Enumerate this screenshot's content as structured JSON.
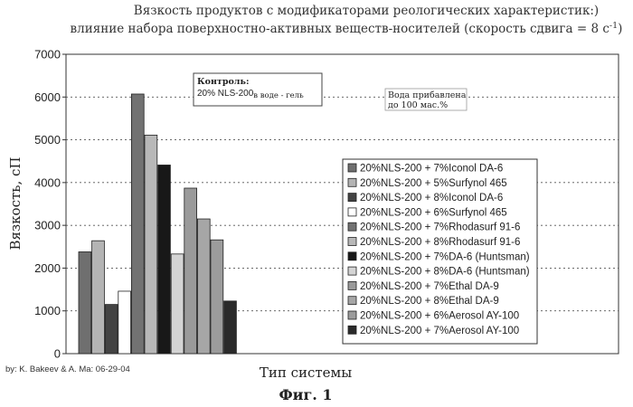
{
  "title_line1": "Вязкость продуктов с модификаторами реологических характеристик:)",
  "title_line2": "влияние набора поверхностно-активных веществ-носителей (скорость сдвига = 8 с",
  "title_sup": "-1",
  "title_close": ")",
  "control_label": "Контроль:",
  "control_text_main": "20% NLS-200",
  "control_text_sub": "в воде - гель",
  "water_line1": "Вода прибавлена",
  "water_line2": "до 100 мас.%",
  "credit": "by: K. Bakeev & A. Ma: 06-29-04",
  "figure_caption": "Фиг. 1",
  "chart_data": {
    "type": "bar",
    "xlabel": "Тип системы",
    "ylabel": "Вязкость, сП",
    "ylim": [
      0,
      7000
    ],
    "yticks": [
      0,
      1000,
      2000,
      3000,
      4000,
      5000,
      6000,
      7000
    ],
    "grid": true,
    "legend_position": "right",
    "colors": [
      "#6f6f6f",
      "#b4b4b4",
      "#434343",
      "#ffffff",
      "#727272",
      "#b8b8b8",
      "#181818",
      "#d4d4d4",
      "#9a9a9a",
      "#a6a6a6",
      "#9c9c9c",
      "#2a2a2a"
    ],
    "series": [
      {
        "name": "20%NLS-200 + 7%Iconol DA-6",
        "value": 2380
      },
      {
        "name": "20%NLS-200 + 5%Surfynol 465",
        "value": 2640
      },
      {
        "name": "20%NLS-200 + 8%Iconol DA-6",
        "value": 1150
      },
      {
        "name": "20%NLS-200 + 6%Surfynol 465",
        "value": 1460
      },
      {
        "name": "20%NLS-200 + 7%Rhodasurf 91-6",
        "value": 6070
      },
      {
        "name": "20%NLS-200 + 8%Rhodasurf 91-6",
        "value": 5110
      },
      {
        "name": "20%NLS-200 + 7%DA-6 (Huntsman)",
        "value": 4410
      },
      {
        "name": "20%NLS-200 + 8%DA-6 (Huntsman)",
        "value": 2330
      },
      {
        "name": "20%NLS-200 + 7%Ethal DA-9",
        "value": 3870
      },
      {
        "name": "20%NLS-200 + 8%Ethal DA-9",
        "value": 3150
      },
      {
        "name": "20%NLS-200 + 6%Aerosol AY-100",
        "value": 2660
      },
      {
        "name": "20%NLS-200 + 7%Aerosol AY-100",
        "value": 1230
      }
    ]
  }
}
